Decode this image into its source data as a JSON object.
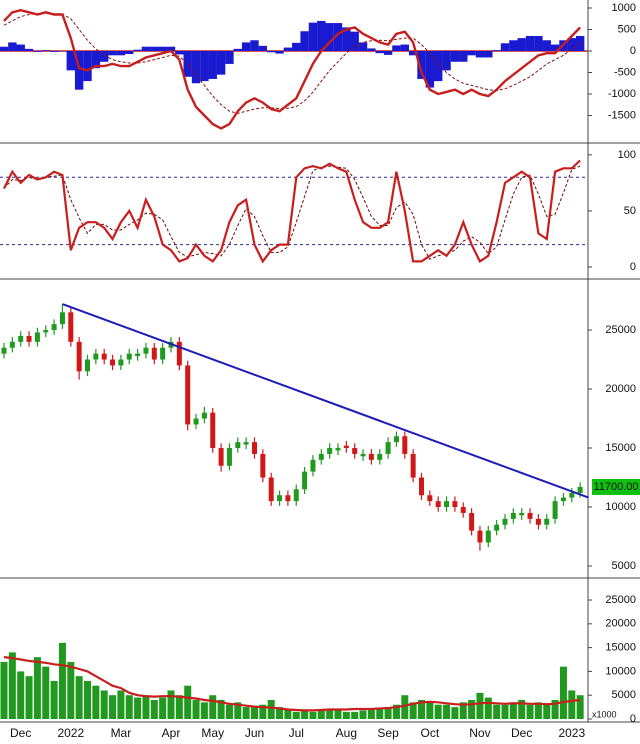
{
  "chart_data": [
    {
      "type": "macd",
      "ylim": [
        -2070,
        1140
      ],
      "yticks": [
        -1500,
        -1000,
        -500,
        0,
        500,
        1000
      ],
      "macd_color": "#c81e1e",
      "signal_color": "#8a1010",
      "histogram_color": "#1a1ad0",
      "macd": [
        700,
        900,
        950,
        900,
        850,
        900,
        850,
        850,
        300,
        -400,
        -450,
        -350,
        -350,
        -300,
        -350,
        -350,
        -250,
        -150,
        -100,
        -50,
        0,
        -200,
        -900,
        -1300,
        -1500,
        -1700,
        -1800,
        -1700,
        -1400,
        -1200,
        -1100,
        -1200,
        -1350,
        -1400,
        -1250,
        -1100,
        -700,
        -300,
        0,
        200,
        400,
        500,
        550,
        400,
        300,
        200,
        150,
        400,
        450,
        200,
        -500,
        -900,
        -1000,
        -950,
        -900,
        -1000,
        -900,
        -1000,
        -1050,
        -900,
        -700,
        -550,
        -400,
        -250,
        -100,
        -50,
        -50,
        150,
        350,
        550
      ],
      "signal": [
        600,
        700,
        800,
        850,
        870,
        880,
        870,
        860,
        750,
        500,
        250,
        50,
        -100,
        -200,
        -250,
        -280,
        -280,
        -250,
        -200,
        -150,
        -100,
        -120,
        -300,
        -550,
        -800,
        -1050,
        -1250,
        -1400,
        -1450,
        -1400,
        -1350,
        -1320,
        -1320,
        -1340,
        -1330,
        -1290,
        -1160,
        -960,
        -700,
        -450,
        -250,
        -50,
        100,
        200,
        240,
        250,
        240,
        270,
        300,
        300,
        150,
        -50,
        -300,
        -500,
        -650,
        -750,
        -800,
        -850,
        -900,
        -920,
        -880,
        -800,
        -700,
        -600,
        -450,
        -300,
        -200,
        -100,
        50,
        200
      ],
      "histogram": [
        100,
        200,
        150,
        50,
        -20,
        20,
        -20,
        -10,
        -450,
        -900,
        -700,
        -400,
        -250,
        -100,
        -100,
        -70,
        30,
        100,
        100,
        100,
        100,
        -80,
        -600,
        -750,
        -700,
        -650,
        -550,
        -300,
        50,
        200,
        250,
        120,
        -30,
        -60,
        80,
        190,
        460,
        660,
        700,
        650,
        650,
        550,
        450,
        200,
        60,
        -50,
        -90,
        130,
        150,
        -100,
        -650,
        -850,
        -700,
        -450,
        -250,
        -250,
        -100,
        -150,
        -150,
        20,
        180,
        250,
        300,
        350,
        350,
        250,
        150,
        250,
        300,
        350
      ]
    },
    {
      "type": "stochastic",
      "ylim": [
        -8,
        107
      ],
      "yticks": [
        0,
        50,
        100
      ],
      "levels": [
        80,
        20
      ],
      "k_color": "#c81e1e",
      "d_color": "#6a0a0a",
      "level_color": "#2a2aa0",
      "k": [
        70,
        85,
        75,
        82,
        78,
        80,
        85,
        82,
        15,
        35,
        40,
        40,
        35,
        25,
        40,
        50,
        35,
        60,
        45,
        20,
        15,
        5,
        8,
        20,
        10,
        5,
        15,
        40,
        55,
        60,
        20,
        5,
        15,
        20,
        20,
        80,
        88,
        90,
        88,
        92,
        88,
        85,
        60,
        40,
        35,
        35,
        40,
        85,
        50,
        5,
        5,
        10,
        15,
        10,
        20,
        40,
        20,
        5,
        10,
        40,
        75,
        80,
        85,
        80,
        30,
        25,
        85,
        88,
        88,
        95
      ],
      "d": [
        70,
        78,
        77,
        80,
        78,
        80,
        81,
        82,
        60,
        44,
        30,
        38,
        38,
        33,
        33,
        38,
        42,
        48,
        47,
        42,
        27,
        13,
        9,
        11,
        13,
        12,
        10,
        20,
        37,
        52,
        45,
        28,
        13,
        13,
        18,
        40,
        63,
        86,
        89,
        90,
        89,
        88,
        78,
        62,
        45,
        37,
        37,
        53,
        58,
        47,
        20,
        7,
        10,
        12,
        15,
        23,
        27,
        22,
        12,
        18,
        42,
        65,
        80,
        82,
        65,
        45,
        47,
        66,
        87,
        90
      ]
    },
    {
      "type": "candlestick",
      "ylim": [
        4240,
        29070
      ],
      "yticks": [
        5000,
        10000,
        15000,
        20000,
        25000
      ],
      "up_color": "#1f9a1f",
      "down_color": "#d01818",
      "trendline_color": "#1c1cb8",
      "trendline": {
        "x": [
          7,
          70
        ],
        "y": [
          27200,
          10800
        ]
      },
      "last_value_label": "11700.00",
      "last_label_color": "#10c010",
      "open": [
        23000,
        23500,
        24000,
        24500,
        24000,
        24800,
        25000,
        25500,
        26500,
        24000,
        21500,
        22500,
        23000,
        22500,
        22000,
        22500,
        22800,
        23000,
        23500,
        22500,
        23500,
        24000,
        22000,
        17000,
        17500,
        18000,
        15000,
        13500,
        15000,
        15300,
        15500,
        14500,
        12500,
        10500,
        11000,
        10500,
        11500,
        13000,
        14000,
        14500,
        14800,
        15200,
        15000,
        14300,
        14500,
        14000,
        14500,
        15500,
        16000,
        14500,
        12500,
        11000,
        10500,
        10000,
        10500,
        10000,
        9500,
        8000,
        7000,
        8000,
        8500,
        9000,
        9300,
        9500,
        9000,
        8500,
        9000,
        10500,
        10800,
        11200
      ],
      "high": [
        23900,
        24400,
        24900,
        24900,
        25200,
        25400,
        25900,
        27200,
        26900,
        24400,
        22900,
        23400,
        23400,
        22900,
        22900,
        23400,
        23400,
        23900,
        23900,
        23900,
        24400,
        24400,
        22400,
        17900,
        18500,
        18400,
        15400,
        15400,
        15900,
        15900,
        15900,
        14900,
        12900,
        11400,
        11400,
        11900,
        13400,
        14400,
        14900,
        15400,
        15400,
        15600,
        15400,
        14900,
        14900,
        14900,
        15900,
        16400,
        16400,
        14900,
        12900,
        11400,
        10900,
        10900,
        10900,
        10400,
        9900,
        8400,
        8400,
        8900,
        9400,
        9900,
        9900,
        9900,
        9400,
        9400,
        10900,
        11200,
        11600,
        12100
      ],
      "low": [
        22600,
        23100,
        23600,
        23600,
        23600,
        24400,
        24600,
        25100,
        23600,
        20800,
        21100,
        22100,
        22100,
        21600,
        21600,
        22100,
        22400,
        22600,
        22100,
        22100,
        23100,
        21600,
        16500,
        16600,
        17100,
        14600,
        13000,
        13100,
        14600,
        14900,
        14100,
        12100,
        10100,
        10100,
        10100,
        10100,
        11100,
        12600,
        13600,
        14100,
        14400,
        14600,
        14100,
        13900,
        13600,
        13600,
        14100,
        15100,
        14100,
        12100,
        10600,
        10100,
        9600,
        9600,
        9600,
        9100,
        7600,
        6300,
        6600,
        7600,
        8100,
        8600,
        8900,
        8600,
        8100,
        8100,
        8600,
        10100,
        10400,
        10800
      ],
      "close": [
        23500,
        24000,
        24500,
        24000,
        24800,
        25000,
        25500,
        26500,
        24000,
        21500,
        22500,
        23000,
        22500,
        22000,
        22500,
        23000,
        23000,
        23500,
        22500,
        23500,
        24000,
        22000,
        17000,
        17500,
        18000,
        15000,
        13500,
        15000,
        15500,
        15500,
        14500,
        12500,
        10500,
        11000,
        10500,
        11500,
        13000,
        14000,
        14500,
        15000,
        15000,
        15000,
        14500,
        14500,
        14000,
        14500,
        15500,
        16000,
        14500,
        12500,
        11000,
        10500,
        10000,
        10500,
        10000,
        9500,
        8000,
        7000,
        8000,
        8500,
        9000,
        9500,
        9500,
        9000,
        8500,
        9000,
        10500,
        10800,
        11200,
        11700
      ]
    },
    {
      "type": "bar",
      "ylim": [
        0,
        29000
      ],
      "yticks": [
        0,
        5000,
        10000,
        15000,
        20000,
        25000
      ],
      "unit_label": "x1000",
      "color": "#1f9a1f",
      "average_color": "#c81e1e",
      "categories": [
        null,
        null,
        "Dec",
        null,
        null,
        null,
        null,
        null,
        "2022",
        null,
        null,
        null,
        null,
        null,
        "Mar",
        null,
        null,
        null,
        null,
        null,
        "Apr",
        null,
        null,
        null,
        null,
        "May",
        null,
        null,
        null,
        null,
        "Jun",
        null,
        null,
        null,
        null,
        "Jul",
        null,
        null,
        null,
        null,
        null,
        "Aug",
        null,
        null,
        null,
        null,
        "Sep",
        null,
        null,
        null,
        null,
        "Oct",
        null,
        null,
        null,
        null,
        null,
        "Nov",
        null,
        null,
        null,
        null,
        "Dec",
        null,
        null,
        null,
        null,
        null,
        "2023",
        null
      ],
      "values": [
        12000,
        14000,
        10000,
        9000,
        13000,
        11000,
        8000,
        16000,
        12000,
        9000,
        8000,
        7000,
        6000,
        5000,
        6000,
        5000,
        4500,
        5000,
        4000,
        4500,
        6000,
        5000,
        7000,
        4000,
        3500,
        5000,
        4000,
        3000,
        3500,
        2500,
        2500,
        3000,
        4000,
        2500,
        2000,
        1500,
        2000,
        1500,
        1800,
        2000,
        1800,
        1500,
        1500,
        1800,
        2000,
        2200,
        2500,
        3000,
        5000,
        3500,
        4000,
        3500,
        3000,
        3000,
        2500,
        3500,
        4000,
        5500,
        4500,
        3000,
        3000,
        3500,
        4000,
        3000,
        3500,
        3000,
        4000,
        11000,
        6000,
        5000
      ],
      "average": [
        13000,
        12800,
        12500,
        12200,
        12000,
        11800,
        11500,
        11300,
        11000,
        10500,
        10000,
        9000,
        8000,
        7000,
        6500,
        5500,
        5000,
        4800,
        4700,
        4800,
        4800,
        4700,
        4500,
        4300,
        4000,
        3800,
        3500,
        3200,
        3000,
        2800,
        2600,
        2500,
        2400,
        2200,
        2000,
        1900,
        1800,
        1800,
        1900,
        2000,
        2000,
        2000,
        2100,
        2100,
        2100,
        2200,
        2300,
        2500,
        2800,
        3200,
        3500,
        3600,
        3500,
        3300,
        3100,
        3000,
        3100,
        3300,
        3400,
        3300,
        3200,
        3300,
        3300,
        3200,
        3200,
        3100,
        3200,
        3600,
        3800,
        4000
      ]
    }
  ]
}
